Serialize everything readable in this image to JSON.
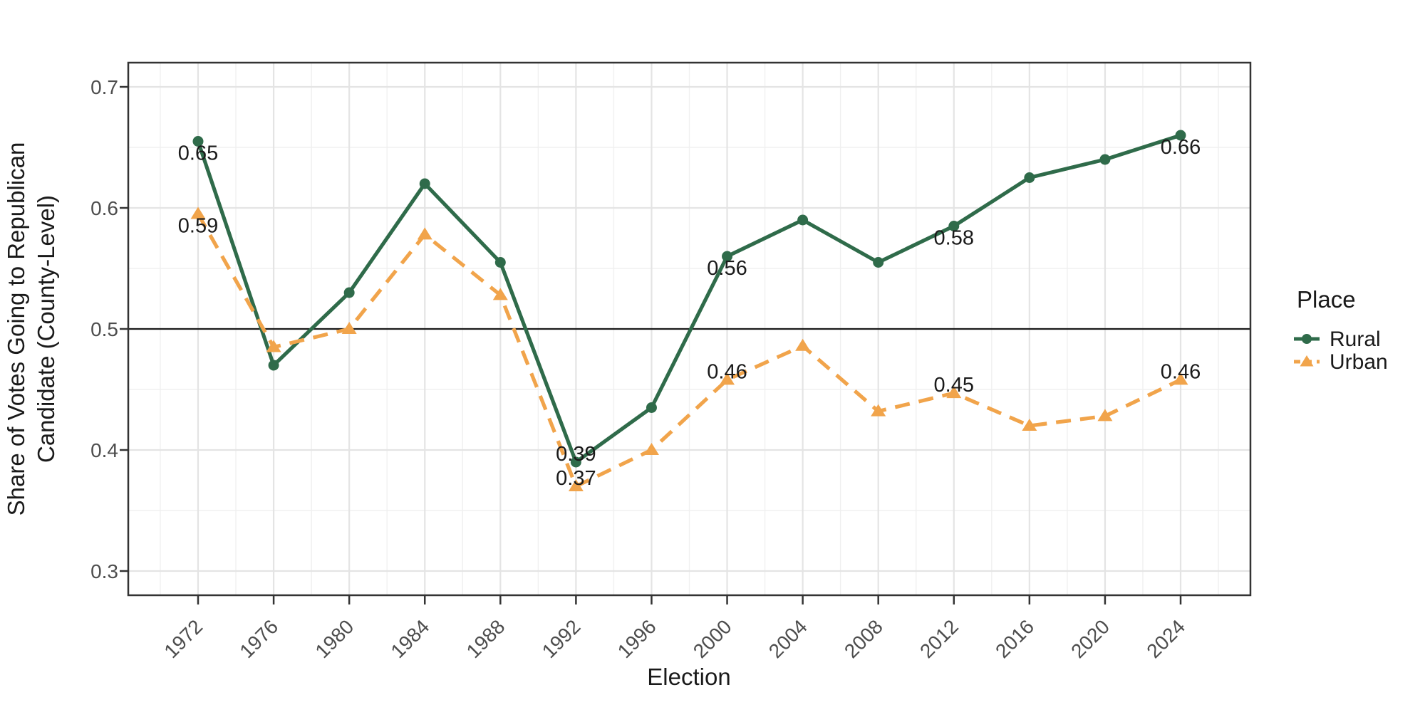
{
  "axes": {
    "xlabel": "Election",
    "ylabel_line1": "Share of Votes Going to Republican",
    "ylabel_line2": "Candidate (County-Level)"
  },
  "colors": {
    "rural": "#2F6B4A",
    "urban": "#F1A44B",
    "grid_major": "#E4E4E4",
    "grid_minor": "#F0F0F0",
    "axis_text": "#4D4D4D",
    "title_text": "#1A1A1A",
    "panel_border": "#333333",
    "reference_line": "#1A1A1A",
    "background": "#FFFFFF"
  },
  "chart_data": {
    "type": "line",
    "title": "",
    "xlabel": "Election",
    "ylabel": "Share of Votes Going to Republican Candidate (County-Level)",
    "x_categories": [
      "1972",
      "1976",
      "1980",
      "1984",
      "1988",
      "1992",
      "1996",
      "2000",
      "2004",
      "2008",
      "2012",
      "2016",
      "2020",
      "2024"
    ],
    "yticks": [
      "0.3",
      "0.4",
      "0.5",
      "0.6",
      "0.7"
    ],
    "ytick_values": [
      0.3,
      0.4,
      0.5,
      0.6,
      0.7
    ],
    "yticks_minor": [
      0.35,
      0.45,
      0.55,
      0.65
    ],
    "ylim": [
      0.28,
      0.72
    ],
    "reference_line_y": 0.5,
    "grid": "major and minor, light gray on white panel",
    "legend_position": "right",
    "series": [
      {
        "name": "Rural",
        "color": "#2F6B4A",
        "line_style": "solid",
        "marker": "circle",
        "values": [
          0.655,
          0.47,
          0.53,
          0.62,
          0.555,
          0.39,
          0.435,
          0.56,
          0.59,
          0.555,
          0.585,
          0.625,
          0.64,
          0.66
        ]
      },
      {
        "name": "Urban",
        "color": "#F1A44B",
        "line_style": "dashed",
        "marker": "triangle-up",
        "values": [
          0.595,
          0.485,
          0.5,
          0.578,
          0.528,
          0.37,
          0.4,
          0.458,
          0.486,
          0.432,
          0.447,
          0.42,
          0.428,
          0.458
        ]
      }
    ],
    "point_labels": [
      {
        "series": "Rural",
        "x": "1972",
        "text": "0.65",
        "position": "below"
      },
      {
        "series": "Urban",
        "x": "1972",
        "text": "0.59",
        "position": "below"
      },
      {
        "series": "Rural",
        "x": "1992",
        "text": "0.39",
        "position": "above"
      },
      {
        "series": "Urban",
        "x": "1992",
        "text": "0.37",
        "position": "above"
      },
      {
        "series": "Rural",
        "x": "2000",
        "text": "0.56",
        "position": "below"
      },
      {
        "series": "Urban",
        "x": "2000",
        "text": "0.46",
        "position": "above"
      },
      {
        "series": "Rural",
        "x": "2012",
        "text": "0.58",
        "position": "below"
      },
      {
        "series": "Urban",
        "x": "2012",
        "text": "0.45",
        "position": "above"
      },
      {
        "series": "Rural",
        "x": "2024",
        "text": "0.66",
        "position": "below"
      },
      {
        "series": "Urban",
        "x": "2024",
        "text": "0.46",
        "position": "above"
      }
    ],
    "legend": {
      "title": "Place",
      "entries": [
        "Rural",
        "Urban"
      ]
    }
  }
}
